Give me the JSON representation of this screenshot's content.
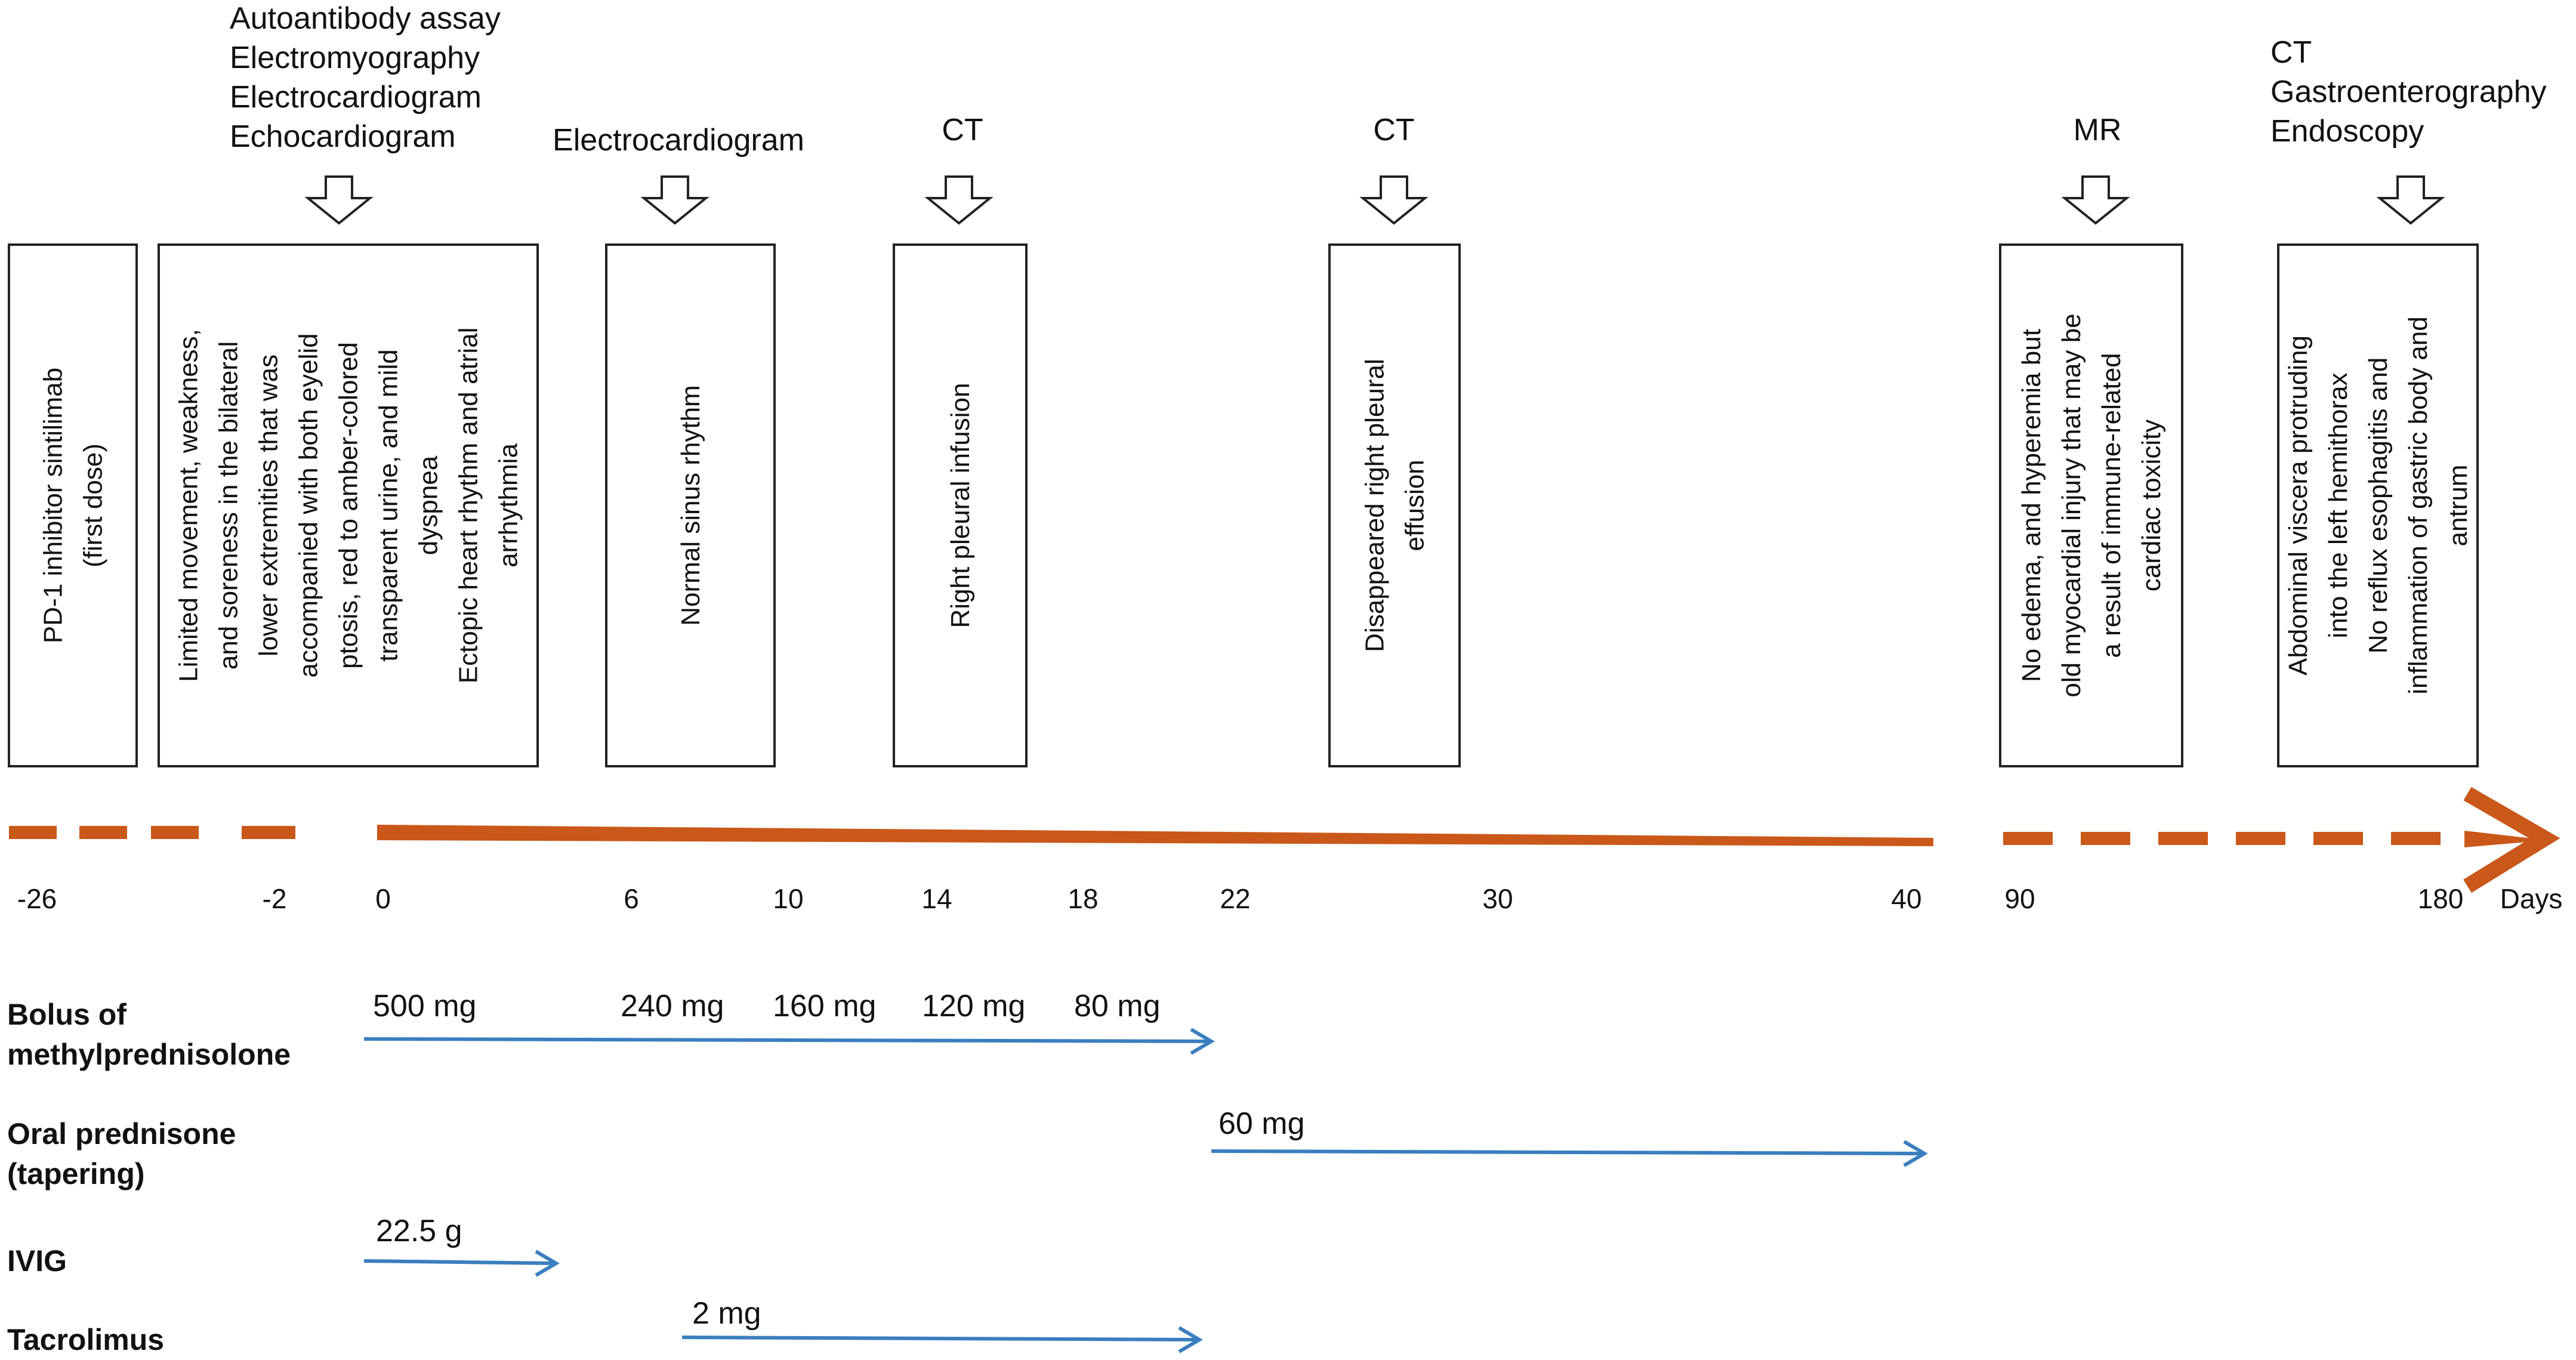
{
  "colors": {
    "timeline": "#c9581a",
    "arrow": "#3a7ebf",
    "box_stroke": "#222222",
    "text": "#111111"
  },
  "tests": [
    [
      "Autoantibody assay",
      "Electromyography",
      "Electrocardiogram",
      "Echocardiogram"
    ],
    [
      "Electrocardiogram"
    ],
    [
      "CT"
    ],
    [
      "CT"
    ],
    [
      "MR"
    ],
    [
      "CT",
      "Gastroenterography",
      "Endoscopy"
    ]
  ],
  "events": [
    [
      "PD-1 inhibitor sintilimab",
      "(first dose)"
    ],
    [
      "Limited movement, weakness,",
      "and soreness in the bilateral",
      "lower extremities that was",
      "accompanied with both eyelid",
      "ptosis, red to amber-colored",
      "transparent urine, and mild",
      "dyspnea",
      "Ectopic heart rhythm and atrial",
      "arrhythmia"
    ],
    [
      "Normal sinus rhythm"
    ],
    [
      "Right pleural infusion"
    ],
    [
      "Disappeared right pleural",
      "effusion"
    ],
    [
      "No edema, and hyperemia but",
      "old myocardial injury that may be",
      "a result of immune-related",
      "cardiac toxicity"
    ],
    [
      "Abdominal viscera protruding",
      "into the left hemithorax",
      "No reflux esophagitis and",
      "inflammation of gastric body and",
      "antrum"
    ]
  ],
  "days": [
    "-26",
    "-2",
    "0",
    "6",
    "10",
    "14",
    "18",
    "22",
    "30",
    "40",
    "90",
    "180",
    "Days"
  ],
  "treatments": [
    {
      "name": [
        "Bolus of",
        "methylprednisolone"
      ],
      "doses": [
        "500 mg",
        "240 mg",
        "160 mg",
        "120 mg",
        "80 mg"
      ]
    },
    {
      "name": [
        "Oral prednisone",
        "(tapering)"
      ],
      "doses": [
        "60 mg"
      ]
    },
    {
      "name": [
        "IVIG"
      ],
      "doses": [
        "22.5 g"
      ]
    },
    {
      "name": [
        "Tacrolimus"
      ],
      "doses": [
        "2 mg"
      ]
    }
  ]
}
